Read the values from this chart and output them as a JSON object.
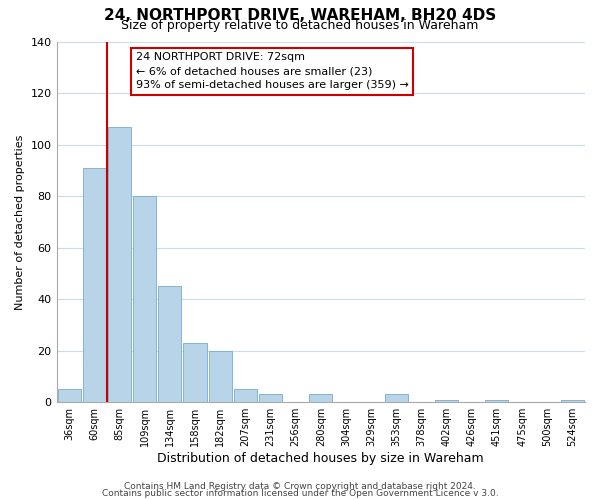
{
  "title": "24, NORTHPORT DRIVE, WAREHAM, BH20 4DS",
  "subtitle": "Size of property relative to detached houses in Wareham",
  "xlabel": "Distribution of detached houses by size in Wareham",
  "ylabel": "Number of detached properties",
  "bar_labels": [
    "36sqm",
    "60sqm",
    "85sqm",
    "109sqm",
    "134sqm",
    "158sqm",
    "182sqm",
    "207sqm",
    "231sqm",
    "256sqm",
    "280sqm",
    "304sqm",
    "329sqm",
    "353sqm",
    "378sqm",
    "402sqm",
    "426sqm",
    "451sqm",
    "475sqm",
    "500sqm",
    "524sqm"
  ],
  "bar_values": [
    5,
    91,
    107,
    80,
    45,
    23,
    20,
    5,
    3,
    0,
    3,
    0,
    0,
    3,
    0,
    1,
    0,
    1,
    0,
    0,
    1
  ],
  "bar_color": "#b8d4e8",
  "bar_edge_color": "#7aabcc",
  "vline_x": 1.5,
  "vline_color": "#cc0000",
  "ylim": [
    0,
    140
  ],
  "yticks": [
    0,
    20,
    40,
    60,
    80,
    100,
    120,
    140
  ],
  "annotation_line1": "24 NORTHPORT DRIVE: 72sqm",
  "annotation_line2": "← 6% of detached houses are smaller (23)",
  "annotation_line3": "93% of semi-detached houses are larger (359) →",
  "footer_line1": "Contains HM Land Registry data © Crown copyright and database right 2024.",
  "footer_line2": "Contains public sector information licensed under the Open Government Licence v 3.0.",
  "title_fontsize": 11,
  "subtitle_fontsize": 9,
  "xlabel_fontsize": 9,
  "ylabel_fontsize": 8,
  "annotation_fontsize": 8,
  "footer_fontsize": 6.5,
  "xtick_fontsize": 7,
  "ytick_fontsize": 8,
  "background_color": "#ffffff",
  "grid_color": "#c8dcea"
}
